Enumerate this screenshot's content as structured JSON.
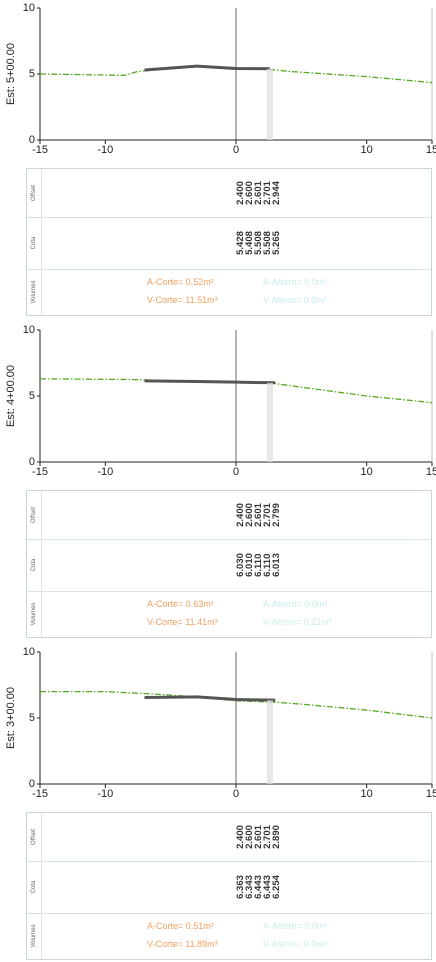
{
  "colors": {
    "terrain": "#55aa22",
    "subgrade": "#555555",
    "axis": "#222222",
    "cut": "#f0a060",
    "fill": "#c8ecec"
  },
  "labels": {
    "offset": "Offset",
    "cota": "Cota",
    "volumes": "Volumes"
  },
  "chart_data": [
    {
      "type": "line",
      "title": "Est: 5+00.00",
      "xlim": [
        -15,
        15
      ],
      "ylim": [
        0,
        10
      ],
      "x_ticks": [
        "-15",
        "-10",
        "0",
        "10",
        "15"
      ],
      "y_ticks": [
        "10",
        "5",
        "0"
      ],
      "series": [
        {
          "values": [
            [
              -15,
              5.0
            ],
            [
              -8.5,
              4.9
            ],
            [
              -7.5,
              5.2
            ],
            [
              -3,
              5.55
            ],
            [
              0,
              5.35
            ],
            [
              2.6,
              5.35
            ],
            [
              4,
              5.2
            ],
            [
              10,
              4.8
            ],
            [
              15,
              4.35
            ]
          ]
        },
        {
          "values": [
            [
              -7,
              5.3
            ],
            [
              -3,
              5.6
            ],
            [
              0,
              5.42
            ],
            [
              2.6,
              5.4
            ]
          ]
        }
      ],
      "offset": [
        "2.400",
        "2.600",
        "2.601",
        "2.701",
        "2.944"
      ],
      "cota": [
        "5.428",
        "5.408",
        "5.508",
        "5.508",
        "5.265"
      ],
      "volumes": {
        "a_corte": "A-Corte= 0.52m²",
        "v_corte": "V-Corte= 11.51m³",
        "a_aterro": "A-Aterro= 0.0m²",
        "v_aterro": "V-Aterro= 0.0m³"
      }
    },
    {
      "type": "line",
      "title": "Est: 4+00.00",
      "xlim": [
        -15,
        15
      ],
      "ylim": [
        0,
        10
      ],
      "x_ticks": [
        "-15",
        "-10",
        "0",
        "10",
        "15"
      ],
      "y_ticks": [
        "10",
        "5",
        "0"
      ],
      "series": [
        {
          "values": [
            [
              -15,
              6.3
            ],
            [
              -8,
              6.25
            ],
            [
              -3,
              6.1
            ],
            [
              0,
              6.0
            ],
            [
              2.6,
              6.0
            ],
            [
              4,
              5.8
            ],
            [
              10,
              5.0
            ],
            [
              15,
              4.5
            ]
          ]
        },
        {
          "values": [
            [
              -7,
              6.15
            ],
            [
              -3,
              6.1
            ],
            [
              0,
              6.05
            ],
            [
              3,
              6.0
            ]
          ]
        }
      ],
      "offset": [
        "2.400",
        "2.600",
        "2.601",
        "2.701",
        "2.799"
      ],
      "cota": [
        "6.030",
        "6.010",
        "6.110",
        "6.110",
        "6.013"
      ],
      "volumes": {
        "a_corte": "A-Corte= 0.63m²",
        "v_corte": "V-Corte= 11.41m³",
        "a_aterro": "A-Aterro= 0.0m²",
        "v_aterro": "V-Aterro= 0.21m³"
      }
    },
    {
      "type": "line",
      "title": "Est: 3+00.00",
      "xlim": [
        -15,
        15
      ],
      "ylim": [
        0,
        10
      ],
      "x_ticks": [
        "-15",
        "-10",
        "0",
        "10",
        "15"
      ],
      "y_ticks": [
        "10",
        "5",
        "0"
      ],
      "series": [
        {
          "values": [
            [
              -15,
              7.0
            ],
            [
              -10,
              7.0
            ],
            [
              -6,
              6.8
            ],
            [
              -3,
              6.6
            ],
            [
              0,
              6.3
            ],
            [
              3,
              6.2
            ],
            [
              5,
              6.05
            ],
            [
              10,
              5.6
            ],
            [
              15,
              5.0
            ]
          ]
        },
        {
          "values": [
            [
              -7,
              6.55
            ],
            [
              -3,
              6.6
            ],
            [
              0,
              6.4
            ],
            [
              3,
              6.35
            ]
          ]
        }
      ],
      "offset": [
        "2.400",
        "2.600",
        "2.601",
        "2.701",
        "2.890"
      ],
      "cota": [
        "6.363",
        "6.343",
        "6.443",
        "6.443",
        "6.254"
      ],
      "volumes": {
        "a_corte": "A-Corte= 0.51m²",
        "v_corte": "V-Corte= 11.89m³",
        "a_aterro": "A-Aterro= 0.0m²",
        "v_aterro": "V-Aterro= 0.0m³"
      }
    }
  ]
}
